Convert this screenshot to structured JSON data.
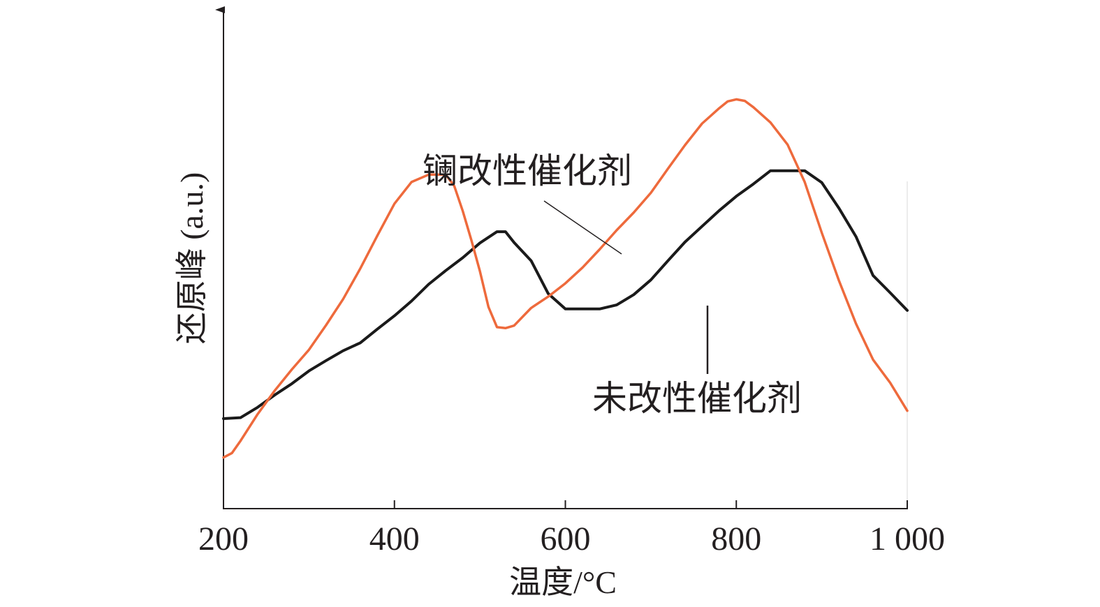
{
  "chart_data": {
    "type": "line",
    "xlabel": "温度/°C",
    "ylabel": "还原峰 (a.u.)",
    "xlim": [
      200,
      1000
    ],
    "ylim": [
      0,
      1
    ],
    "x_ticks": [
      200,
      400,
      600,
      800,
      1000
    ],
    "x_tick_labels": [
      "200",
      "400",
      "600",
      "800",
      "1 000"
    ],
    "series": [
      {
        "name": "镧改性催化剂",
        "color": "#ee6a3c",
        "x": [
          200,
          210,
          220,
          240,
          260,
          280,
          300,
          320,
          340,
          360,
          380,
          400,
          420,
          440,
          460,
          470,
          480,
          490,
          500,
          510,
          520,
          530,
          540,
          560,
          580,
          600,
          620,
          640,
          660,
          680,
          700,
          720,
          740,
          760,
          780,
          790,
          800,
          810,
          820,
          840,
          860,
          880,
          900,
          920,
          940,
          960,
          980,
          1000
        ],
        "y": [
          0.104,
          0.113,
          0.138,
          0.192,
          0.24,
          0.283,
          0.323,
          0.373,
          0.426,
          0.488,
          0.555,
          0.62,
          0.664,
          0.679,
          0.679,
          0.656,
          0.605,
          0.546,
          0.483,
          0.41,
          0.369,
          0.367,
          0.372,
          0.408,
          0.431,
          0.458,
          0.49,
          0.527,
          0.566,
          0.602,
          0.642,
          0.691,
          0.739,
          0.783,
          0.814,
          0.828,
          0.832,
          0.829,
          0.816,
          0.785,
          0.74,
          0.664,
          0.561,
          0.464,
          0.376,
          0.303,
          0.256,
          0.199
        ]
      },
      {
        "name": "未改性催化剂",
        "color": "#1a1a1a",
        "x": [
          200,
          220,
          240,
          260,
          280,
          300,
          320,
          340,
          360,
          380,
          400,
          420,
          440,
          460,
          480,
          500,
          520,
          530,
          540,
          560,
          580,
          600,
          620,
          640,
          660,
          680,
          700,
          720,
          740,
          760,
          780,
          800,
          820,
          840,
          860,
          880,
          900,
          920,
          940,
          960,
          980,
          1000
        ],
        "y": [
          0.183,
          0.185,
          0.206,
          0.231,
          0.254,
          0.28,
          0.301,
          0.321,
          0.337,
          0.365,
          0.392,
          0.422,
          0.456,
          0.484,
          0.51,
          0.54,
          0.563,
          0.563,
          0.541,
          0.504,
          0.437,
          0.406,
          0.406,
          0.406,
          0.414,
          0.435,
          0.465,
          0.504,
          0.542,
          0.574,
          0.606,
          0.635,
          0.66,
          0.687,
          0.687,
          0.687,
          0.663,
          0.611,
          0.553,
          0.474,
          0.439,
          0.403
        ]
      }
    ],
    "annotations": [
      {
        "text": "镧改性催化剂",
        "series": "镧改性催化剂"
      },
      {
        "text": "未改性催化剂",
        "series": "未改性催化剂"
      }
    ],
    "grid": false,
    "legend": "none"
  }
}
